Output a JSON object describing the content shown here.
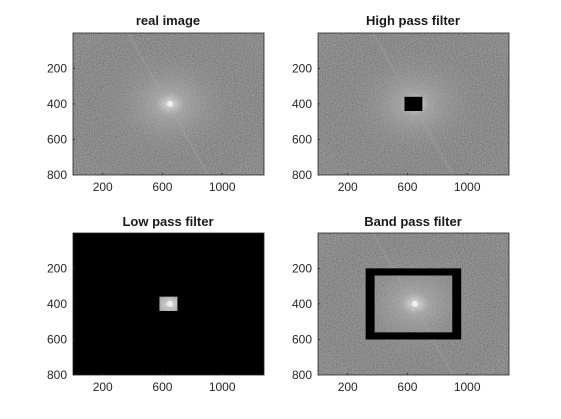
{
  "chart_data": [
    {
      "type": "heatmap",
      "title": "real image",
      "xticks": [
        200,
        600,
        1000
      ],
      "yticks": [
        200,
        400,
        600,
        800
      ],
      "xlim": [
        1,
        1280
      ],
      "ylim": [
        1,
        800
      ],
      "y_reversed": true,
      "colormap": "gray",
      "mask": {
        "kind": "none"
      }
    },
    {
      "type": "heatmap",
      "title": "High pass filter",
      "xticks": [
        200,
        600,
        1000
      ],
      "yticks": [
        200,
        400,
        600,
        800
      ],
      "xlim": [
        1,
        1280
      ],
      "ylim": [
        1,
        800
      ],
      "y_reversed": true,
      "colormap": "gray",
      "mask": {
        "kind": "high_pass",
        "rect": {
          "x0": 580,
          "x1": 700,
          "y0": 360,
          "y1": 440
        }
      }
    },
    {
      "type": "heatmap",
      "title": "Low pass filter",
      "xticks": [
        200,
        600,
        1000
      ],
      "yticks": [
        200,
        400,
        600,
        800
      ],
      "xlim": [
        1,
        1280
      ],
      "ylim": [
        1,
        800
      ],
      "y_reversed": true,
      "colormap": "gray",
      "mask": {
        "kind": "low_pass",
        "rect": {
          "x0": 580,
          "x1": 700,
          "y0": 360,
          "y1": 440
        }
      }
    },
    {
      "type": "heatmap",
      "title": "Band pass filter",
      "xticks": [
        200,
        600,
        1000
      ],
      "yticks": [
        200,
        400,
        600,
        800
      ],
      "xlim": [
        1,
        1280
      ],
      "ylim": [
        1,
        800
      ],
      "y_reversed": true,
      "colormap": "gray",
      "mask": {
        "kind": "band_pass",
        "outer": {
          "x0": 320,
          "x1": 960,
          "y0": 200,
          "y1": 600
        },
        "inner": {
          "x0": 380,
          "x1": 900,
          "y0": 240,
          "y1": 560
        }
      }
    }
  ]
}
